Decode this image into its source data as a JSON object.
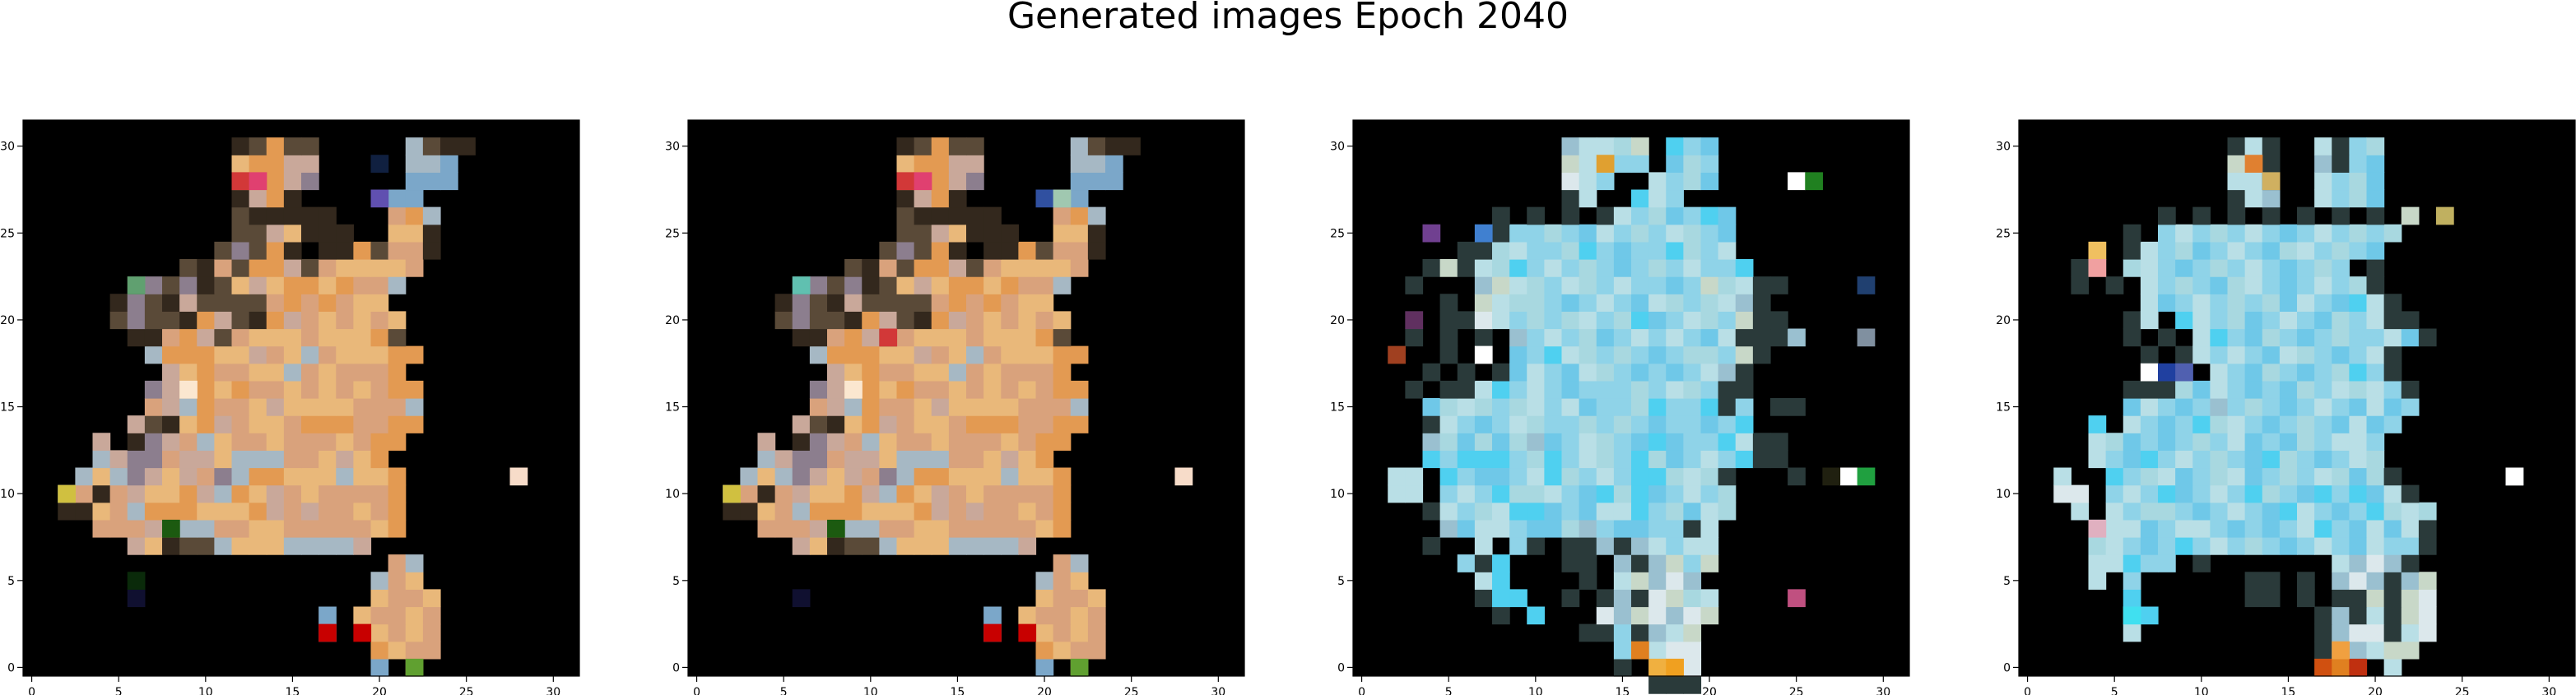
{
  "figure": {
    "title": "Generated images Epoch 2040"
  },
  "chart_data": [
    {
      "type": "heatmap",
      "panel": 1,
      "xlim": [
        -0.5,
        31.5
      ],
      "ylim": [
        31.5,
        -0.5
      ],
      "xticks": [
        "0",
        "5",
        "10",
        "15",
        "20",
        "25",
        "30"
      ],
      "yticks": [
        "0",
        "5",
        "10",
        "15",
        "20",
        "25",
        "30"
      ],
      "palette": [
        "#000000",
        "#e9b87a",
        "#d9a27c",
        "#c9a89a",
        "#e39a52",
        "#a6b8c4",
        "#8c7e8e",
        "#5a4a38",
        "#33281d",
        "#7ba7c9",
        "#cbd49a"
      ],
      "accent_pixels": [
        {
          "x": 17,
          "y": 3,
          "color": "#c80000"
        },
        {
          "x": 19,
          "y": 3,
          "color": "#c80000"
        },
        {
          "x": 28,
          "y": 12,
          "color": "#f7dcc9"
        },
        {
          "x": 6,
          "y": 5,
          "color": "#101030"
        },
        {
          "x": 6,
          "y": 6,
          "color": "#0a2a0a"
        },
        {
          "x": 8,
          "y": 9,
          "color": "#1c5a10"
        },
        {
          "x": 9,
          "y": 17,
          "color": "#fbe7d0"
        },
        {
          "x": 12,
          "y": 29,
          "color": "#d23838"
        },
        {
          "x": 13,
          "y": 29,
          "color": "#e04070"
        },
        {
          "x": 20,
          "y": 28,
          "color": "#6050b0"
        },
        {
          "x": 20,
          "y": 30,
          "color": "#102040"
        },
        {
          "x": 22,
          "y": 1,
          "color": "#60a030"
        },
        {
          "x": 6,
          "y": 23,
          "color": "#60a070"
        },
        {
          "x": 2,
          "y": 11,
          "color": "#d0c040"
        }
      ],
      "rows": [
        "................................",
        "....................9.2.........",
        "....................4122........",
        ".................9..1212........",
        ".................9.12212........",
        "....................1221........",
        "....................521.........",
        ".....................25.........",
        "......31877511155553............",
        "....222345522112222214..........",
        "..88125444111432322124..........",
        "..52823114354132122224..........",
        "...5156313265441115114..........",
        "....53662331555221314...........",
        "....3.8632512212221244..........",
        "......37814321124442244.........",
        ".......2354221311112225.........",
        ".......6314142212121244.........",
        "........31422115212224..........",
        ".......5444113215211144.........",
        "......8824372111211147..........",
        ".....76778437843212121..........",
        ".....8678377772424211...........",
        "......8676871314414225..........",
        ".........78274437211112.........",
        "...........76748.8847228........",
        "............7731888..118........",
        "............788888...245........",
        "............8348.....99.........",
        "............41436.....999.......",
        "............14433.....559.......",
        "............87477.....5788......"
      ]
    },
    {
      "type": "heatmap",
      "panel": 2,
      "xlim": [
        -0.5,
        31.5
      ],
      "ylim": [
        31.5,
        -0.5
      ],
      "xticks": [
        "0",
        "5",
        "10",
        "15",
        "20",
        "25",
        "30"
      ],
      "yticks": [
        "0",
        "5",
        "10",
        "15",
        "20",
        "25",
        "30"
      ],
      "palette": [
        "#000000",
        "#e9b87a",
        "#d9a27c",
        "#c9a89a",
        "#e39a52",
        "#a6b8c4",
        "#8c7e8e",
        "#5a4a38",
        "#33281d",
        "#7ba7c9",
        "#cbd49a"
      ],
      "accent_pixels": [
        {
          "x": 17,
          "y": 3,
          "color": "#c80000"
        },
        {
          "x": 19,
          "y": 3,
          "color": "#c80000"
        },
        {
          "x": 28,
          "y": 12,
          "color": "#f7dcc9"
        },
        {
          "x": 6,
          "y": 5,
          "color": "#101030"
        },
        {
          "x": 8,
          "y": 9,
          "color": "#1c5a10"
        },
        {
          "x": 9,
          "y": 17,
          "color": "#fbe7d0"
        },
        {
          "x": 11,
          "y": 20,
          "color": "#d23838"
        },
        {
          "x": 12,
          "y": 29,
          "color": "#d23838"
        },
        {
          "x": 13,
          "y": 29,
          "color": "#e04070"
        },
        {
          "x": 20,
          "y": 28,
          "color": "#3050a0"
        },
        {
          "x": 22,
          "y": 1,
          "color": "#60a030"
        },
        {
          "x": 6,
          "y": 23,
          "color": "#60c0b0"
        },
        {
          "x": 2,
          "y": 11,
          "color": "#d0c040"
        },
        {
          "x": 21,
          "y": 28,
          "color": "#a0c8b0"
        }
      ],
      "rows": [
        "................................",
        "....................9.2.........",
        "....................4122........",
        ".................9..1212........",
        ".................9.12212........",
        "....................1221........",
        "....................521.........",
        ".....................25.........",
        "......31877511155553............",
        "....222345522112222214..........",
        "..88125444111432322124..........",
        "..52823114354132122224..........",
        "...5156313265441115114..........",
        "....53662331555221314...........",
        "....3.8632512212221244..........",
        "......37814321124442244.........",
        ".......2354221311112225.........",
        ".......6314142212121244.........",
        "........31422115212224..........",
        ".......5444113215211144.........",
        "......8824372111211147..........",
        ".....76778437843212121..........",
        ".....8678377772424211...........",
        "......8676871314414225..........",
        ".........78274437211112.........",
        "...........76748.8847228........",
        "............7731888..118........",
        "............788888...245........",
        "............8348.....99.........",
        "............41436.....999.......",
        "............14433.....559.......",
        "............87477.....5788......"
      ]
    },
    {
      "type": "heatmap",
      "panel": 3,
      "xlim": [
        -0.5,
        31.5
      ],
      "ylim": [
        31.5,
        -0.5
      ],
      "xticks": [
        "0",
        "5",
        "10",
        "15",
        "20",
        "25",
        "30"
      ],
      "yticks": [
        "0",
        "5",
        "10",
        "15",
        "20",
        "25",
        "30"
      ],
      "palette": [
        "#000000",
        "#8fd3e8",
        "#a8d8e0",
        "#6fc8e8",
        "#b9dfe6",
        "#9ac0d0",
        "#c8d8c8",
        "#4fd0f0",
        "#dce8ec",
        "#7aa8c8",
        "#2a3a3a"
      ],
      "accent_pixels": [
        {
          "x": 17,
          "y": 1,
          "color": "#f0b040"
        },
        {
          "x": 18,
          "y": 1,
          "color": "#f0a020"
        },
        {
          "x": 16,
          "y": 2,
          "color": "#e08020"
        },
        {
          "x": 25,
          "y": 5,
          "color": "#c05080"
        },
        {
          "x": 28,
          "y": 12,
          "color": "#ffffff"
        },
        {
          "x": 29,
          "y": 12,
          "color": "#20a040"
        },
        {
          "x": 27,
          "y": 12,
          "color": "#202010"
        },
        {
          "x": 2,
          "y": 19,
          "color": "#a04020"
        },
        {
          "x": 3,
          "y": 21,
          "color": "#603060"
        },
        {
          "x": 7,
          "y": 19,
          "color": "#ffffff"
        },
        {
          "x": 4,
          "y": 26,
          "color": "#704090"
        },
        {
          "x": 7,
          "y": 26,
          "color": "#4080d0"
        },
        {
          "x": 14,
          "y": 30,
          "color": "#e0a030"
        },
        {
          "x": 25,
          "y": 29,
          "color": "#ffffff"
        },
        {
          "x": 26,
          "y": 29,
          "color": "#208020"
        },
        {
          "x": 29,
          "y": 23,
          "color": "#204070"
        },
        {
          "x": 29,
          "y": 20,
          "color": "#8090a0"
        }
      ],
      "rows": [
        ".................aaa............",
        "...............a.aa8............",
        "...............11488............",
        ".............aa1a546............",
        "........a.7...8568586...........",
        ".......a77..a.a5a8624...........",
        ".......47....a.46585............",
        "......1a7...aa.5a5616...........",
        "....a..4.1a.aa5a54144...........",
        ".....53441332513311a4...........",
        "....a41247731344712342..........",
        "..44.14172241372731412..........",
        "..44.7133147214177242a...a......",
        "....7177712714217231417aa.......",
        "....5232325314213731174aa.......",
        "....a413142112121311317.........",
        "....32421241431127117a1.aa......",
        "...a.aa47141311121421aa.........",
        "....a.a.a3413421313145a.........",
        ".....a.a.31742121312216a........",
        "...a.a.a.5141231414134aaa5......",
        "...a.aa8412124127314216aa.......",
        ".....a.6422131413421245a........",
        "...a...5642142141131624aa.......",
        "....a6a4271412131214117.........",
        "......aa24112713117214..........",
        "........a1121341214213..........",
        "........a.a.a.a4123173..........",
        "............a4..741.............",
        "............841..4123...........",
        "............64411.321...........",
        "............54426.713..........."
      ]
    },
    {
      "type": "heatmap",
      "panel": 4,
      "xlim": [
        -0.5,
        31.5
      ],
      "ylim": [
        31.5,
        -0.5
      ],
      "xticks": [
        "0",
        "5",
        "10",
        "15",
        "20",
        "25",
        "30"
      ],
      "yticks": [
        "0",
        "5",
        "10",
        "15",
        "20",
        "25",
        "30"
      ],
      "palette": [
        "#000000",
        "#8fd3e8",
        "#a8d8e0",
        "#6fc8e8",
        "#b9dfe6",
        "#9ac0d0",
        "#c8d8c8",
        "#4fd0f0",
        "#dce8ec",
        "#7aa8c8",
        "#2a3a3a"
      ],
      "accent_pixels": [
        {
          "x": 17,
          "y": 1,
          "color": "#d05010"
        },
        {
          "x": 18,
          "y": 1,
          "color": "#e08020"
        },
        {
          "x": 19,
          "y": 1,
          "color": "#c03010"
        },
        {
          "x": 18,
          "y": 2,
          "color": "#f0a040"
        },
        {
          "x": 28,
          "y": 12,
          "color": "#ffffff"
        },
        {
          "x": 4,
          "y": 9,
          "color": "#e0b0c0"
        },
        {
          "x": 7,
          "y": 18,
          "color": "#ffffff"
        },
        {
          "x": 8,
          "y": 18,
          "color": "#2040a0"
        },
        {
          "x": 9,
          "y": 18,
          "color": "#5060b0"
        },
        {
          "x": 4,
          "y": 25,
          "color": "#f0c060"
        },
        {
          "x": 4,
          "y": 24,
          "color": "#f0a0a0"
        },
        {
          "x": 13,
          "y": 30,
          "color": "#e08030"
        },
        {
          "x": 14,
          "y": 29,
          "color": "#d0b060"
        },
        {
          "x": 24,
          "y": 27,
          "color": "#c0b060"
        },
        {
          "x": 6,
          "y": 4,
          "color": "#40e0f0"
        }
      ],
      "rows": [
        "................................",
        "...................a.4..........",
        ".................a55466.........",
        "......4..........a588a48........",
        "......47.........a5a4a68........",
        "......7......aa.a.aa6a68........",
        "....4.1......aa.a.585a56........",
        "....44711.a.......4585a.........",
        "....2413171412131413411a........",
        "....4443144131314713434a........",
        "...4.4122131413741317242........",
        "..88.14173141721371734a.........",
        "..4..7124312431214232a......8...",
        "....41371412137213142...........",
        "....42313121431321441...........",
        "....7.4131724131213431..........",
        "......34131512131413431.........",
        "......aaa2341313214241a.........",
        ".......a...4132131271a..........",
        ".......a.a41413421314a..........",
        "......a.a.4713213121143a........",
        "......a4.741231413214aa.........",
        ".......43141212341374a..........",
        "...a.a.4121324131412a...........",
        "...aa.2413121413121.a...........",
        "....a.a41231413241213...........",
        "......a.14121413141212..........",
        "........a.a.a.a.a.a.a.6.........",
        "............a45..4123...........",
        "............44a..4123...........",
        "............64a..5a13...........",
        "............a4a..4a12..........."
      ]
    }
  ]
}
